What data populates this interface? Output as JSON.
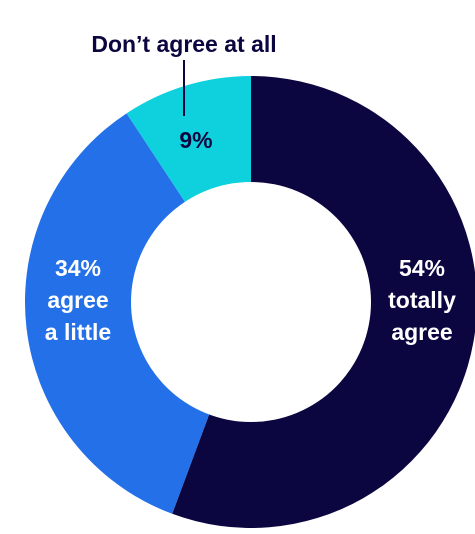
{
  "chart_data": {
    "type": "pie",
    "variant": "donut",
    "title": "",
    "categories": [
      "totally agree",
      "agree a little",
      "Don’t agree at all"
    ],
    "values": [
      54,
      34,
      9
    ],
    "unit": "%",
    "colors": {
      "totally agree": "#0C0640",
      "agree a little": "#2470E8",
      "Don’t agree at all": "#0FD1DD"
    },
    "labels": {
      "totally": [
        "54%",
        "totally",
        "agree"
      ],
      "little": [
        "34%",
        "agree",
        "a little"
      ],
      "none_value": "9%",
      "none_callout": "Don’t agree at all"
    },
    "label_colors": {
      "inside": "#ffffff",
      "dark": "#0C0640"
    }
  }
}
